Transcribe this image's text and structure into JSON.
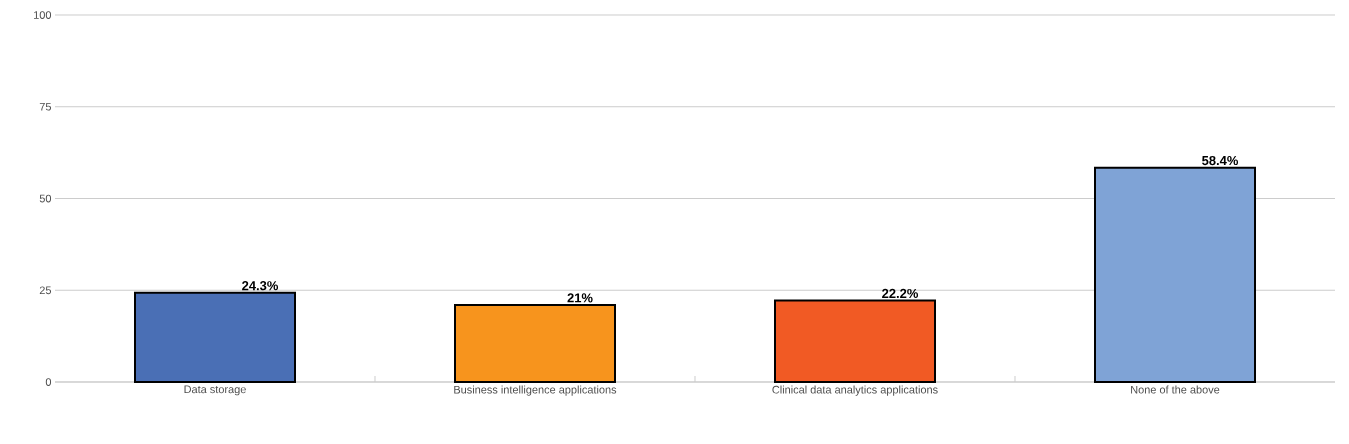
{
  "chart_data": {
    "type": "bar",
    "categories": [
      "Data storage",
      "Business intelligence applications",
      "Clinical data analytics applications",
      "None of the above"
    ],
    "values": [
      24.3,
      21,
      22.2,
      58.4
    ],
    "colors": [
      "#4a6fb5",
      "#f7941d",
      "#f15a24",
      "#7fa3d6"
    ],
    "value_labels": [
      "24.3%",
      "21%",
      "22.2%",
      "58.4%"
    ],
    "ylim": [
      0,
      100
    ],
    "yticks": [
      0,
      25,
      50,
      75,
      100
    ],
    "grid": "y"
  }
}
